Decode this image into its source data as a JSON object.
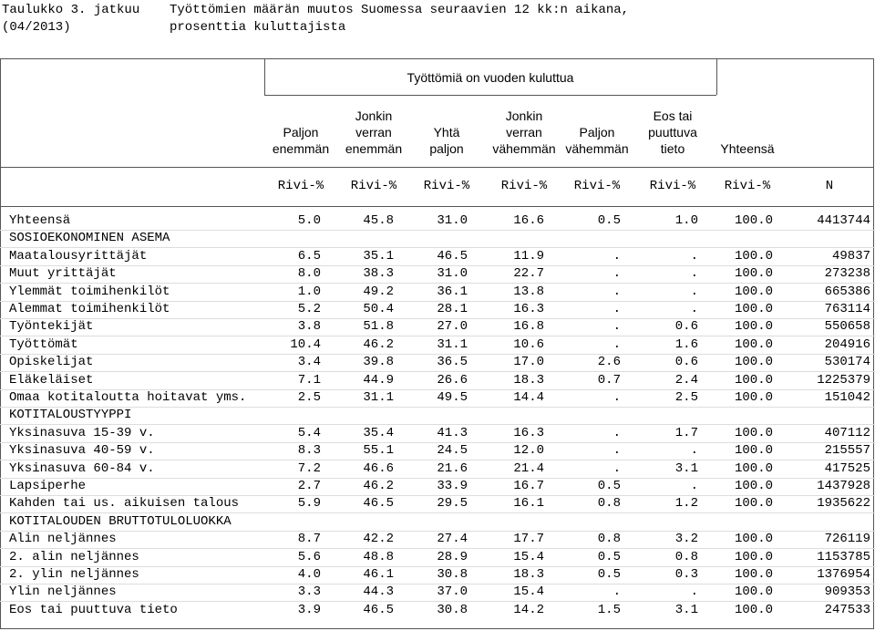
{
  "header": {
    "label": "Taulukko 3. jatkuu",
    "date": "(04/2013)",
    "title": "Työttömien määrän muutos Suomessa seuraavien 12 kk:n aikana,",
    "subtitle": "prosenttia kuluttajista"
  },
  "table": {
    "group_header": "Työttömiä on vuoden kuluttua",
    "columns": [
      [
        "Paljon",
        "enemmän"
      ],
      [
        "Jonkin",
        "verran",
        "enemmän"
      ],
      [
        "Yhtä",
        "paljon"
      ],
      [
        "Jonkin",
        "verran",
        "vähemmän"
      ],
      [
        "Paljon",
        "vähemmän"
      ],
      [
        "Eos tai",
        "puuttuva",
        "tieto"
      ],
      [
        "Yhteensä"
      ]
    ],
    "units": [
      "Rivi-%",
      "Rivi-%",
      "Rivi-%",
      "Rivi-%",
      "Rivi-%",
      "Rivi-%",
      "Rivi-%",
      "N"
    ],
    "rows": [
      {
        "label": "Yhteensä",
        "values": [
          "5.0",
          "45.8",
          "31.0",
          "16.6",
          "0.5",
          "1.0",
          "100.0",
          "4413744"
        ]
      },
      {
        "label": "SOSIOEKONOMINEN ASEMA"
      },
      {
        "label": "Maatalousyrittäjät",
        "values": [
          "6.5",
          "35.1",
          "46.5",
          "11.9",
          ".",
          ".",
          "100.0",
          "49837"
        ]
      },
      {
        "label": "Muut yrittäjät",
        "values": [
          "8.0",
          "38.3",
          "31.0",
          "22.7",
          ".",
          ".",
          "100.0",
          "273238"
        ]
      },
      {
        "label": "Ylemmät toimihenkilöt",
        "values": [
          "1.0",
          "49.2",
          "36.1",
          "13.8",
          ".",
          ".",
          "100.0",
          "665386"
        ]
      },
      {
        "label": "Alemmat toimihenkilöt",
        "values": [
          "5.2",
          "50.4",
          "28.1",
          "16.3",
          ".",
          ".",
          "100.0",
          "763114"
        ]
      },
      {
        "label": "Työntekijät",
        "values": [
          "3.8",
          "51.8",
          "27.0",
          "16.8",
          ".",
          "0.6",
          "100.0",
          "550658"
        ]
      },
      {
        "label": "Työttömät",
        "values": [
          "10.4",
          "46.2",
          "31.1",
          "10.6",
          ".",
          "1.6",
          "100.0",
          "204916"
        ]
      },
      {
        "label": "Opiskelijat",
        "values": [
          "3.4",
          "39.8",
          "36.5",
          "17.0",
          "2.6",
          "0.6",
          "100.0",
          "530174"
        ]
      },
      {
        "label": "Eläkeläiset",
        "values": [
          "7.1",
          "44.9",
          "26.6",
          "18.3",
          "0.7",
          "2.4",
          "100.0",
          "1225379"
        ]
      },
      {
        "label": "Omaa kotitaloutta hoitavat yms.",
        "values": [
          "2.5",
          "31.1",
          "49.5",
          "14.4",
          ".",
          "2.5",
          "100.0",
          "151042"
        ]
      },
      {
        "label": "KOTITALOUSTYYPPI"
      },
      {
        "label": "Yksinasuva 15-39 v.",
        "values": [
          "5.4",
          "35.4",
          "41.3",
          "16.3",
          ".",
          "1.7",
          "100.0",
          "407112"
        ]
      },
      {
        "label": "Yksinasuva 40-59 v.",
        "values": [
          "8.3",
          "55.1",
          "24.5",
          "12.0",
          ".",
          ".",
          "100.0",
          "215557"
        ]
      },
      {
        "label": "Yksinasuva 60-84 v.",
        "values": [
          "7.2",
          "46.6",
          "21.6",
          "21.4",
          ".",
          "3.1",
          "100.0",
          "417525"
        ]
      },
      {
        "label": "Lapsiperhe",
        "values": [
          "2.7",
          "46.2",
          "33.9",
          "16.7",
          "0.5",
          ".",
          "100.0",
          "1437928"
        ]
      },
      {
        "label": "Kahden tai us. aikuisen talous",
        "values": [
          "5.9",
          "46.5",
          "29.5",
          "16.1",
          "0.8",
          "1.2",
          "100.0",
          "1935622"
        ]
      },
      {
        "label": "KOTITALOUDEN BRUTTOTULOLUOKKA"
      },
      {
        "label": "Alin neljännes",
        "values": [
          "8.7",
          "42.2",
          "27.4",
          "17.7",
          "0.8",
          "3.2",
          "100.0",
          "726119"
        ]
      },
      {
        "label": "2. alin neljännes",
        "values": [
          "5.6",
          "48.8",
          "28.9",
          "15.4",
          "0.5",
          "0.8",
          "100.0",
          "1153785"
        ]
      },
      {
        "label": "2. ylin neljännes",
        "values": [
          "4.0",
          "46.1",
          "30.8",
          "18.3",
          "0.5",
          "0.3",
          "100.0",
          "1376954"
        ]
      },
      {
        "label": "Ylin neljännes",
        "values": [
          "3.3",
          "44.3",
          "37.0",
          "15.4",
          ".",
          ".",
          "100.0",
          "909353"
        ]
      },
      {
        "label": "Eos tai puuttuva tieto",
        "values": [
          "3.9",
          "46.5",
          "30.8",
          "14.2",
          "1.5",
          "3.1",
          "100.0",
          "247533"
        ]
      }
    ]
  }
}
